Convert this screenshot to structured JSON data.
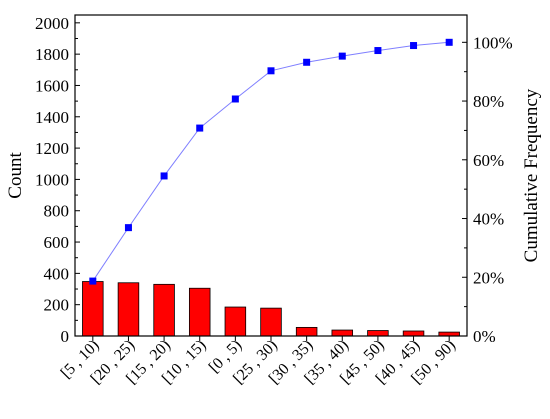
{
  "chart_data": {
    "type": "bar",
    "categories": [
      "[5 , 10)",
      "[20 , 25)",
      "[15 , 20)",
      "[10 , 15)",
      "[0 , 5)",
      "[25 , 30)",
      "[30 , 35)",
      "[35 , 40)",
      "[45 , 50)",
      "[40 , 45)",
      "[50 , 90)"
    ],
    "series": [
      {
        "type": "bar",
        "axis": "left",
        "values": [
          348,
          340,
          330,
          305,
          185,
          178,
          55,
          38,
          35,
          32,
          25
        ],
        "color": "#ff0000",
        "edge_color": "#000000"
      },
      {
        "type": "line",
        "axis": "right",
        "marker": "square",
        "values": [
          18.7,
          36.9,
          54.5,
          70.8,
          80.7,
          90.3,
          93.2,
          95.3,
          97.2,
          98.9,
          100
        ],
        "color": "#0000ff",
        "line_color": "#7f7fff"
      }
    ],
    "ylabel": "Count",
    "ylabel_right": "Cumulative Frequency",
    "ylim": [
      0,
      2050
    ],
    "ylim_right": [
      0,
      109.3
    ],
    "yticks": [
      0,
      200,
      400,
      600,
      800,
      1000,
      1200,
      1400,
      1600,
      1800,
      2000
    ],
    "yticks_right": [
      "0%",
      "20%",
      "40%",
      "60%",
      "80%",
      "100%"
    ],
    "yticks_right_values": [
      0,
      20,
      40,
      60,
      80,
      100
    ],
    "grid": false,
    "legend": "none"
  }
}
